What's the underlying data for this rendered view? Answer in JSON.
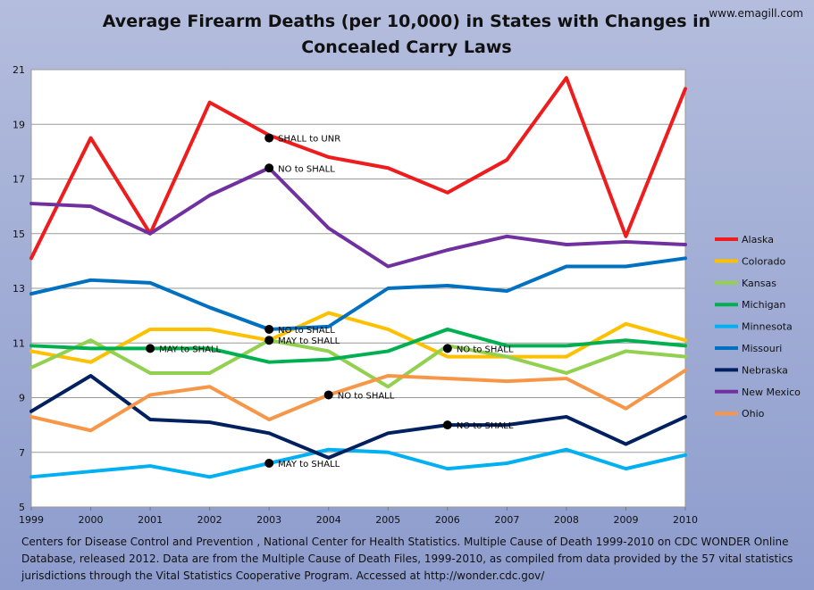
{
  "title": "Average Firearm Deaths (per 10,000) in States with Changes in Concealed Carry Laws",
  "site": "www.emagill.com",
  "source": "Centers for Disease Control and Prevention , National Center for Health Statistics. Multiple Cause of Death 1999-2010  on CDC WONDER Online Database, released 2012. Data are from the Multiple Cause of Death Files, 1999-2010,  as compiled from data provided by the 57 vital statistics jurisdictions through the Vital Statistics Cooperative Program. Accessed at http://wonder.cdc.gov/",
  "chart_data": {
    "type": "line",
    "title": "Average Firearm Deaths (per 10,000) in States with Changes in Concealed Carry Laws",
    "xlabel": "",
    "ylabel": "",
    "x": [
      1999,
      2000,
      2001,
      2002,
      2003,
      2004,
      2005,
      2006,
      2007,
      2008,
      2009,
      2010
    ],
    "ylim": [
      5,
      21
    ],
    "yticks": [
      5,
      7,
      9,
      11,
      13,
      15,
      17,
      19,
      21
    ],
    "grid": true,
    "legend": "right",
    "series": [
      {
        "name": "Alaska",
        "color": "#ee1c1c",
        "values": [
          14.1,
          18.5,
          15.0,
          19.8,
          18.6,
          17.8,
          17.4,
          16.5,
          17.7,
          20.7,
          14.9,
          20.3
        ]
      },
      {
        "name": "Colorado",
        "color": "#ffc000",
        "values": [
          10.7,
          10.3,
          11.5,
          11.5,
          11.1,
          12.1,
          11.5,
          10.5,
          10.5,
          10.5,
          11.7,
          11.1
        ]
      },
      {
        "name": "Kansas",
        "color": "#92d050",
        "values": [
          10.1,
          11.1,
          9.9,
          9.9,
          11.1,
          10.7,
          9.4,
          10.9,
          10.5,
          9.9,
          10.7,
          10.5
        ]
      },
      {
        "name": "Michigan",
        "color": "#00b050",
        "values": [
          10.9,
          10.8,
          10.8,
          10.8,
          10.3,
          10.4,
          10.7,
          11.5,
          10.9,
          10.9,
          11.1,
          10.9
        ]
      },
      {
        "name": "Minnesota",
        "color": "#00b0f0",
        "values": [
          6.1,
          6.3,
          6.5,
          6.1,
          6.6,
          7.1,
          7.0,
          6.4,
          6.6,
          7.1,
          6.4,
          6.9
        ]
      },
      {
        "name": "Missouri",
        "color": "#0070c0",
        "values": [
          12.8,
          13.3,
          13.2,
          12.3,
          11.5,
          11.6,
          13.0,
          13.1,
          12.9,
          13.8,
          13.8,
          14.1
        ]
      },
      {
        "name": "Nebraska",
        "color": "#002060",
        "values": [
          8.5,
          9.8,
          8.2,
          8.1,
          7.7,
          6.8,
          7.7,
          8.0,
          8.0,
          8.3,
          7.3,
          8.3
        ]
      },
      {
        "name": "New Mexico",
        "color": "#7030a0",
        "values": [
          16.1,
          16.0,
          15.0,
          16.4,
          17.4,
          15.2,
          13.8,
          14.4,
          14.9,
          14.6,
          14.7,
          14.6
        ]
      },
      {
        "name": "Ohio",
        "color": "#f79646",
        "values": [
          8.3,
          7.8,
          9.1,
          9.4,
          8.2,
          9.1,
          9.8,
          9.7,
          9.6,
          9.7,
          8.6,
          10.0
        ]
      }
    ],
    "annotations": [
      {
        "x": 2003,
        "y": 18.5,
        "text": "SHALL to UNR"
      },
      {
        "x": 2003,
        "y": 17.4,
        "text": "NO to SHALL"
      },
      {
        "x": 2003,
        "y": 11.5,
        "text": "NO to SHALL"
      },
      {
        "x": 2001,
        "y": 10.8,
        "text": "MAY to SHALL"
      },
      {
        "x": 2003,
        "y": 11.1,
        "text": "MAY to SHALL"
      },
      {
        "x": 2006,
        "y": 10.8,
        "text": "NO to SHALL"
      },
      {
        "x": 2004,
        "y": 9.1,
        "text": "NO to SHALL"
      },
      {
        "x": 2006,
        "y": 8.0,
        "text": "NO to SHALL"
      },
      {
        "x": 2003,
        "y": 6.6,
        "text": "MAY to SHALL"
      }
    ]
  }
}
